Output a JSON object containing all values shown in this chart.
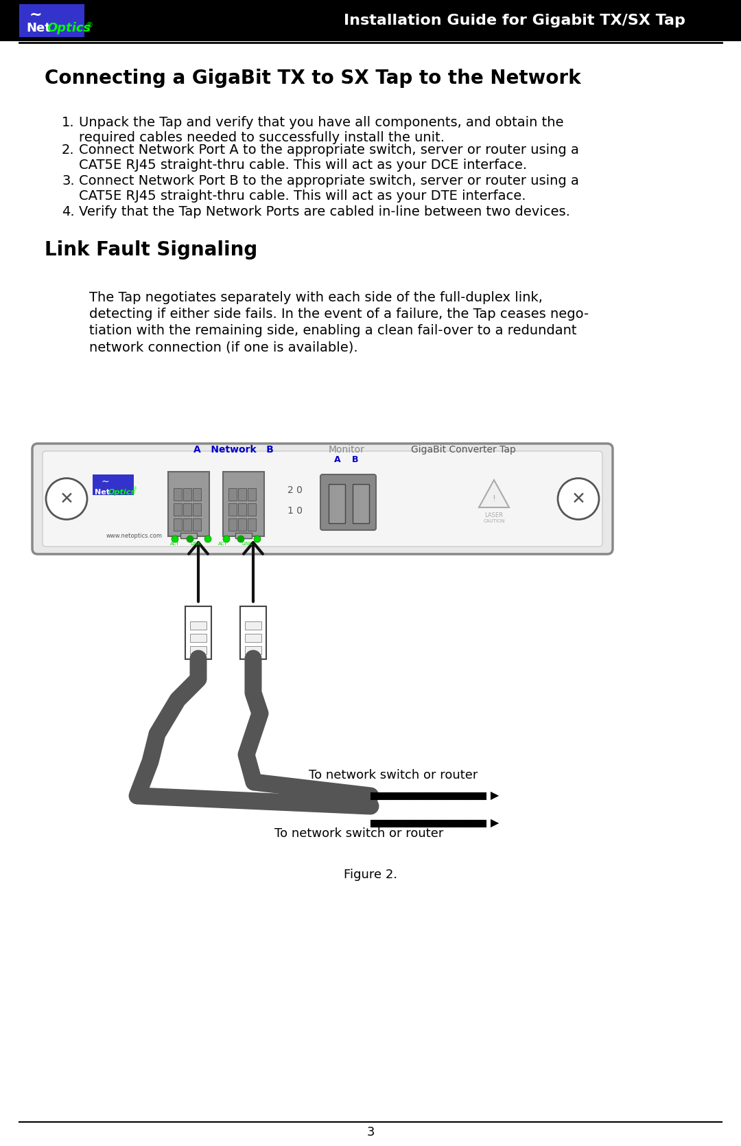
{
  "page_bg": "#ffffff",
  "header_bg": "#000000",
  "header_text": "Installation Guide for Gigabit TX/SX Tap",
  "header_text_color": "#ffffff",
  "logo_bg": "#3333cc",
  "logo_net_color": "#ffffff",
  "logo_optics_color": "#00ff00",
  "title1": "Connecting a GigaBit TX to SX Tap to the Network",
  "title2": "Link Fault Signaling",
  "items": [
    "Unpack the Tap and verify that you have all components, and obtain the\nrequired cables needed to successfully install the unit.",
    "Connect Network Port A to the appropriate switch, server or router using a\nCAT5E RJ45 straight-thru cable. This will act as your DCE interface.",
    "Connect Network Port B to the appropriate switch, server or router using a\nCAT5E RJ45 straight-thru cable. This will act as your DTE interface.",
    "Verify that the Tap Network Ports are cabled in-line between two devices."
  ],
  "lfs_para": "The Tap negotiates separately with each side of the full-duplex link,\ndetecting if either side fails. In the event of a failure, the Tap ceases nego-\ntiation with the remaining side, enabling a clean fail-over to a redundant\nnetwork connection (if one is available).",
  "figure_caption": "Figure 2.",
  "page_number": "3",
  "device_bg": "#e8e8e8",
  "device_border": "#aaaaaa",
  "cable_color": "#555555",
  "arrow_color": "#111111",
  "green_led": "#00dd00",
  "monitor_bg": "#888888"
}
